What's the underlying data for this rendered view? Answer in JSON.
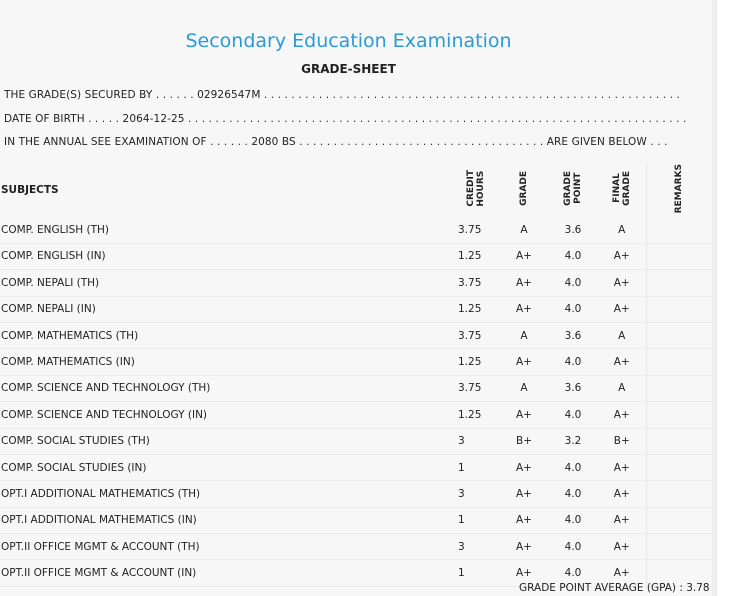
{
  "header": {
    "exam_title": "Secondary Education Examination",
    "sheet_title": "GRADE-SHEET"
  },
  "info": {
    "secured_by": "THE GRADE(S) SECURED BY . . . . . . 02926547M . . . . . . . . . . . . . . . . . . . . . . . . . . . . . . . . . . . . . . . . . . . . . . . . . . . . . . . . . . . . .",
    "dob": "DATE OF BIRTH . . . . . 2064-12-25 . . . . . . . . . . . . . . . . . . . . . . . . . . . . . . . . . . . . . . . . . . . . . . . . . . . . . . . . . . . . . . . . . . . . . . . . .",
    "exam_line": "IN THE ANNUAL SEE EXAMINATION OF . . . . . . 2080 BS . . . . . . . . . . . . . . . . . . . . . . . . . . . . . . . . . . . . ARE GIVEN BELOW . . ."
  },
  "table": {
    "headers": {
      "subjects": "SUBJECTS",
      "credit_hours": "CREDIT\nHOURS",
      "grade": "GRADE",
      "grade_point": "GRADE\nPOINT",
      "final_grade": "FINAL\nGRADE",
      "remarks": "REMARKS"
    },
    "rows": [
      {
        "subject": "COMP. ENGLISH (TH)",
        "credit": "3.75",
        "grade": "A",
        "point": "3.6",
        "final": "A"
      },
      {
        "subject": "COMP. ENGLISH (IN)",
        "credit": "1.25",
        "grade": "A+",
        "point": "4.0",
        "final": "A+"
      },
      {
        "subject": "COMP. NEPALI (TH)",
        "credit": "3.75",
        "grade": "A+",
        "point": "4.0",
        "final": "A+"
      },
      {
        "subject": "COMP. NEPALI (IN)",
        "credit": "1.25",
        "grade": "A+",
        "point": "4.0",
        "final": "A+"
      },
      {
        "subject": "COMP. MATHEMATICS (TH)",
        "credit": "3.75",
        "grade": "A",
        "point": "3.6",
        "final": "A"
      },
      {
        "subject": "COMP. MATHEMATICS (IN)",
        "credit": "1.25",
        "grade": "A+",
        "point": "4.0",
        "final": "A+"
      },
      {
        "subject": "COMP. SCIENCE AND TECHNOLOGY (TH)",
        "credit": "3.75",
        "grade": "A",
        "point": "3.6",
        "final": "A"
      },
      {
        "subject": "COMP. SCIENCE AND TECHNOLOGY (IN)",
        "credit": "1.25",
        "grade": "A+",
        "point": "4.0",
        "final": "A+"
      },
      {
        "subject": "COMP. SOCIAL STUDIES (TH)",
        "credit": "3",
        "grade": "B+",
        "point": "3.2",
        "final": "B+"
      },
      {
        "subject": "COMP. SOCIAL STUDIES (IN)",
        "credit": "1",
        "grade": "A+",
        "point": "4.0",
        "final": "A+"
      },
      {
        "subject": "OPT.I ADDITIONAL MATHEMATICS (TH)",
        "credit": "3",
        "grade": "A+",
        "point": "4.0",
        "final": "A+"
      },
      {
        "subject": "OPT.I ADDITIONAL MATHEMATICS (IN)",
        "credit": "1",
        "grade": "A+",
        "point": "4.0",
        "final": "A+"
      },
      {
        "subject": "OPT.II OFFICE MGMT & ACCOUNT (TH)",
        "credit": "3",
        "grade": "A+",
        "point": "4.0",
        "final": "A+"
      },
      {
        "subject": "OPT.II OFFICE MGMT & ACCOUNT (IN)",
        "credit": "1",
        "grade": "A+",
        "point": "4.0",
        "final": "A+"
      }
    ]
  },
  "gpa": "GRADE POINT AVERAGE (GPA) : 3.78",
  "colors": {
    "title_blue": "#2a9bd6",
    "background": "#f7f7f7"
  }
}
